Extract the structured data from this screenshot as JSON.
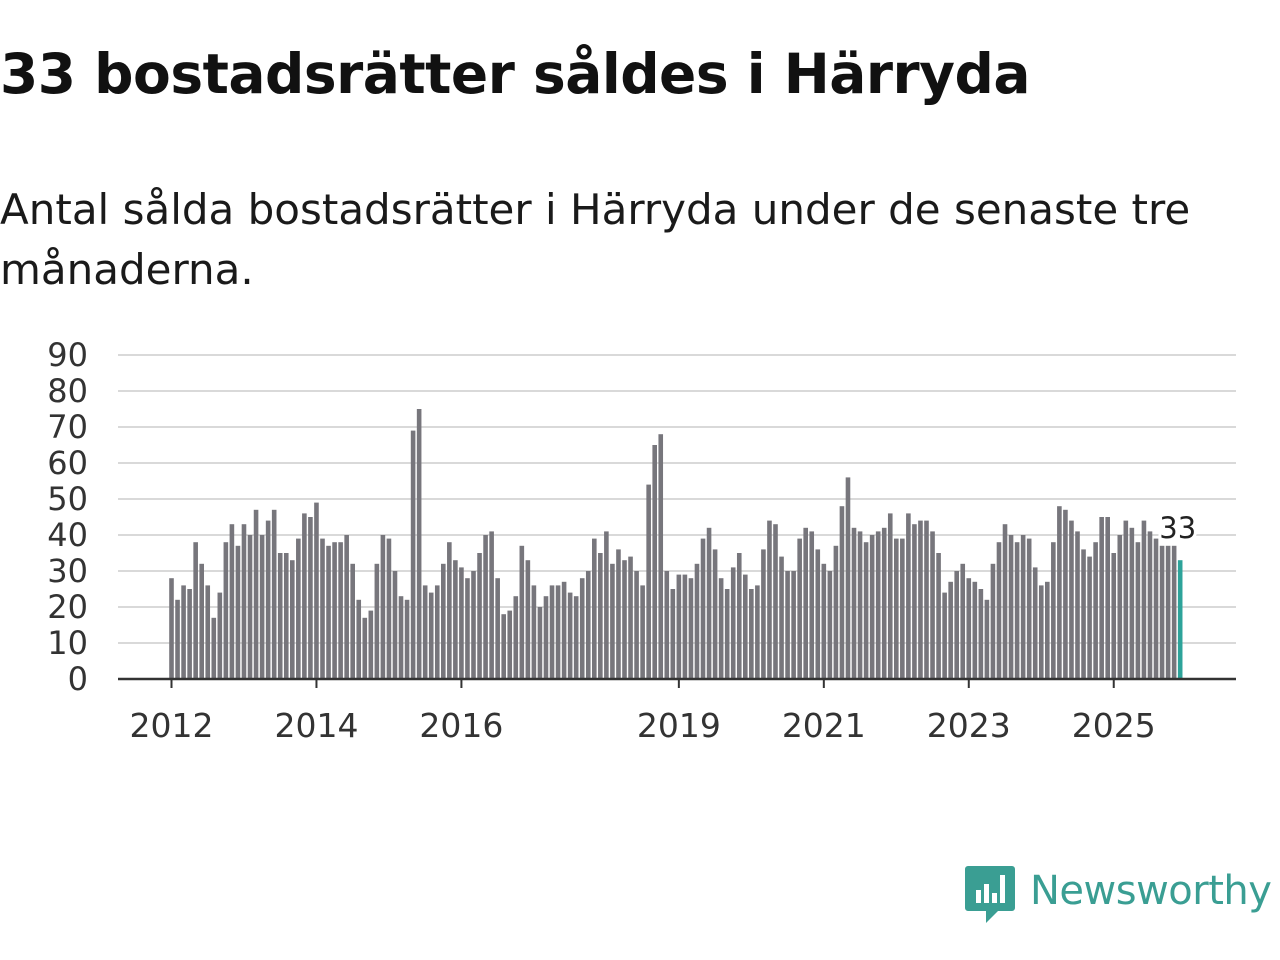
{
  "header": {
    "title": "33 bostadsrätter såldes i Härryda",
    "subtitle": "Antal sålda bostadsrätter i Härryda under de senaste tre månaderna."
  },
  "brand": {
    "name": "Newsworthy",
    "icon": "newsworthy-logo-icon",
    "color": "#3a9e93"
  },
  "chart_data": {
    "type": "bar",
    "title": "",
    "xlabel": "",
    "ylabel": "",
    "ylim": [
      0,
      90
    ],
    "y_ticks": [
      "0",
      "10",
      "20",
      "30",
      "40",
      "50",
      "60",
      "70",
      "80",
      "90"
    ],
    "x_tick_labels": [
      "2012",
      "2014",
      "2016",
      "2019",
      "2021",
      "2023",
      "2025"
    ],
    "grid": true,
    "legend": "none",
    "bar_color": "#77767c",
    "highlight_color": "#2da39a",
    "highlight_label": "33",
    "start_period": "2012-01",
    "end_period": "2025-12",
    "values": [
      28,
      22,
      26,
      25,
      38,
      32,
      26,
      17,
      24,
      38,
      43,
      37,
      43,
      40,
      47,
      40,
      44,
      47,
      35,
      35,
      33,
      39,
      46,
      45,
      49,
      39,
      37,
      38,
      38,
      40,
      32,
      22,
      17,
      19,
      32,
      40,
      39,
      30,
      23,
      22,
      69,
      75,
      26,
      24,
      26,
      32,
      38,
      33,
      31,
      28,
      30,
      35,
      40,
      41,
      28,
      18,
      19,
      23,
      37,
      33,
      26,
      20,
      23,
      26,
      26,
      27,
      24,
      23,
      28,
      30,
      39,
      35,
      41,
      32,
      36,
      33,
      34,
      30,
      26,
      54,
      65,
      68,
      30,
      25,
      29,
      29,
      28,
      32,
      39,
      42,
      36,
      28,
      25,
      31,
      35,
      29,
      25,
      26,
      36,
      44,
      43,
      34,
      30,
      30,
      39,
      42,
      41,
      36,
      32,
      30,
      37,
      48,
      56,
      42,
      41,
      38,
      40,
      41,
      42,
      46,
      39,
      39,
      46,
      43,
      44,
      44,
      41,
      35,
      24,
      27,
      30,
      32,
      28,
      27,
      25,
      22,
      32,
      38,
      43,
      40,
      38,
      40,
      39,
      31,
      26,
      27,
      38,
      48,
      47,
      44,
      41,
      36,
      34,
      38,
      45,
      45,
      35,
      40,
      44,
      42,
      38,
      44,
      41,
      39,
      37,
      37,
      37,
      33
    ]
  }
}
